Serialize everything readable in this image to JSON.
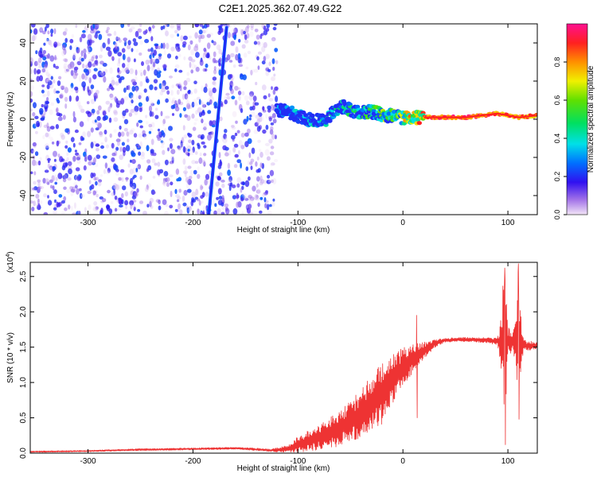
{
  "title": "C2E1.2025.362.07.49.G22",
  "chart_data": [
    {
      "type": "heatmap",
      "name": "spectrogram",
      "xlabel": "Height of straight line (km)",
      "ylabel": "Frequency (Hz)",
      "xlim": [
        -355,
        128
      ],
      "ylim": [
        -50,
        50
      ],
      "xticks": [
        -300,
        -200,
        -100,
        0,
        100
      ],
      "yticks": [
        -40,
        -20,
        0,
        20,
        40
      ],
      "xtick_labels": [
        "-300",
        "-200",
        "-100",
        "0",
        "100"
      ],
      "ytick_labels": [
        "-40",
        "-20",
        "0",
        "20",
        "40"
      ],
      "noise_region_end_km": -120,
      "oblique_streak": {
        "x_start": -185,
        "y_start": -50,
        "x_end": -168,
        "y_end": 48
      },
      "signal_band": [
        {
          "x": -120,
          "f": 5,
          "a": 0.35
        },
        {
          "x": -105,
          "f": 3,
          "a": 0.4
        },
        {
          "x": -90,
          "f": 0,
          "a": 0.45
        },
        {
          "x": -75,
          "f": -1,
          "a": 0.5
        },
        {
          "x": -60,
          "f": 7,
          "a": 0.5
        },
        {
          "x": -45,
          "f": 4,
          "a": 0.55
        },
        {
          "x": -30,
          "f": 4,
          "a": 0.6
        },
        {
          "x": -15,
          "f": 2,
          "a": 0.7
        },
        {
          "x": 0,
          "f": 1,
          "a": 0.8
        },
        {
          "x": 20,
          "f": 1,
          "a": 0.95
        },
        {
          "x": 60,
          "f": 1,
          "a": 1.0
        },
        {
          "x": 90,
          "f": 3,
          "a": 0.95
        },
        {
          "x": 110,
          "f": 1,
          "a": 0.95
        },
        {
          "x": 128,
          "f": 2,
          "a": 0.9
        }
      ],
      "colorbar": {
        "label": "Normalized spectral amplitude",
        "range": [
          0,
          1
        ],
        "ticks": [
          0.0,
          0.2,
          0.4,
          0.6,
          0.8
        ],
        "tick_labels": [
          "0.0",
          "0.2",
          "0.4",
          "0.6",
          "0.8"
        ]
      }
    },
    {
      "type": "line",
      "name": "snr",
      "xlabel": "Height of straight line (km)",
      "ylabel": "SNR (10 * v/v)",
      "yscale_label": "(x10",
      "yscale_exponent": "4",
      "xlim": [
        -355,
        128
      ],
      "ylim": [
        0,
        2.7
      ],
      "xticks": [
        -300,
        -200,
        -100,
        0,
        100
      ],
      "yticks": [
        0,
        0.5,
        1.0,
        1.5,
        2.0,
        2.5
      ],
      "xtick_labels": [
        "-300",
        "-200",
        "-100",
        "0",
        "100"
      ],
      "ytick_labels": [
        "0.0",
        "0.5",
        "1.0",
        "1.5",
        "2.0",
        "2.5"
      ],
      "color": "#ee3333",
      "envelope": {
        "x": [
          -355,
          -300,
          -250,
          -200,
          -160,
          -125,
          -110,
          -100,
          -80,
          -60,
          -40,
          -20,
          -10,
          0,
          10,
          20,
          30,
          40,
          60,
          80,
          90,
          93,
          96,
          98,
          100,
          105,
          108,
          110,
          112,
          115,
          128
        ],
        "mean": [
          0.02,
          0.03,
          0.05,
          0.06,
          0.07,
          0.04,
          0.06,
          0.12,
          0.22,
          0.35,
          0.55,
          0.85,
          1.05,
          1.2,
          1.35,
          1.45,
          1.55,
          1.6,
          1.61,
          1.6,
          1.58,
          1.55,
          1.6,
          1.6,
          1.58,
          1.58,
          1.55,
          1.58,
          1.55,
          1.52,
          1.52
        ],
        "amp": [
          0.01,
          0.01,
          0.015,
          0.015,
          0.015,
          0.02,
          0.05,
          0.12,
          0.18,
          0.25,
          0.35,
          0.45,
          0.35,
          0.3,
          0.2,
          0.12,
          0.06,
          0.03,
          0.03,
          0.04,
          0.05,
          0.3,
          1.0,
          0.9,
          0.2,
          0.15,
          0.35,
          1.1,
          0.5,
          0.08,
          0.05
        ]
      },
      "spikes": [
        {
          "x": 97,
          "y": 2.62
        },
        {
          "x": 97.6,
          "y": 0.12
        },
        {
          "x": 110,
          "y": 2.68
        },
        {
          "x": 110.6,
          "y": 0.48
        },
        {
          "x": 13,
          "y": 1.95
        },
        {
          "x": 13.6,
          "y": 0.5
        }
      ]
    }
  ]
}
